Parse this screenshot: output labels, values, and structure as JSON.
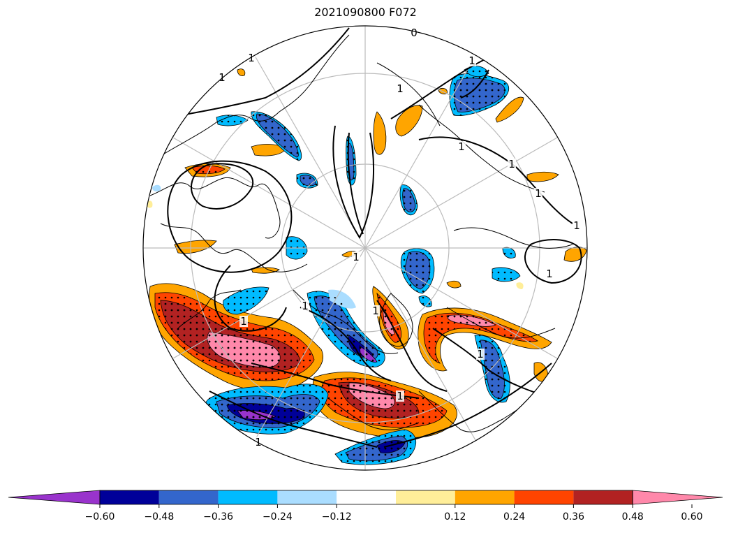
{
  "title": "2021090800 F072",
  "colorbar": {
    "extend": "both",
    "colors": [
      "#9933cc",
      "#000099",
      "#3366cc",
      "#00bbff",
      "#aaddff",
      "#ffffff",
      "#ffee99",
      "#ffa500",
      "#ff4400",
      "#b22222",
      "#ff88aa"
    ],
    "boundaries": [
      -0.6,
      -0.48,
      -0.36,
      -0.24,
      -0.12,
      0.12,
      0.24,
      0.36,
      0.48,
      0.6
    ],
    "tick_labels": [
      "−0.60",
      "−0.48",
      "−0.36",
      "−0.24",
      "−0.12",
      "0.12",
      "0.24",
      "0.36",
      "0.48",
      "0.60"
    ]
  },
  "contour_labels": [
    "0",
    "1",
    "1",
    "1",
    "1",
    "1",
    "1",
    "1",
    "1",
    "1",
    "1",
    "1",
    "1",
    "1",
    "1",
    "1",
    "1"
  ],
  "map": {
    "projection": "north-polar-stereographic",
    "fill_colors": {
      "pink": "#ff88aa",
      "darkred": "#b22222",
      "red": "#ff4400",
      "orange": "#ffa500",
      "yellow": "#ffee99",
      "lightblue": "#aaddff",
      "cyan": "#00bbff",
      "blue": "#3366cc",
      "navy": "#000099",
      "purple": "#9933cc"
    }
  }
}
